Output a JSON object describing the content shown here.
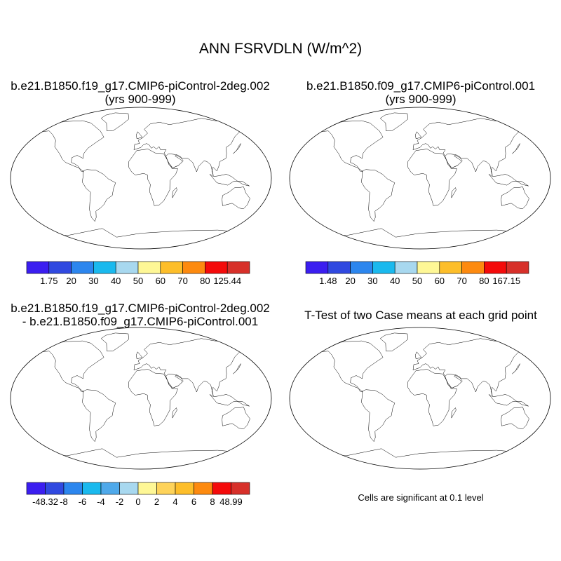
{
  "figure": {
    "title": "ANN FSRVDLN (W/m^2)"
  },
  "panels": [
    {
      "id": "case1",
      "title_line1": "b.e21.B1850.f19_g17.CMIP6-piControl-2deg.002",
      "title_line2": "(yrs 900-999)",
      "colorbar": {
        "colors": [
          "#3b1ef0",
          "#3049e0",
          "#2c86ee",
          "#1ab9ee",
          "#a8d8ef",
          "#fef796",
          "#fdbe2a",
          "#fd8a0f",
          "#f40b0b",
          "#d7302a"
        ],
        "labels": [
          "1.75",
          "20",
          "30",
          "40",
          "50",
          "60",
          "70",
          "80",
          "125.44"
        ]
      }
    },
    {
      "id": "case2",
      "title_line1": "b.e21.B1850.f09_g17.CMIP6-piControl.001",
      "title_line2": "(yrs 900-999)",
      "colorbar": {
        "colors": [
          "#3b1ef0",
          "#3049e0",
          "#2c86ee",
          "#1ab9ee",
          "#a8d8ef",
          "#fef796",
          "#fdbe2a",
          "#fd8a0f",
          "#f40b0b",
          "#d7302a"
        ],
        "labels": [
          "1.48",
          "20",
          "30",
          "40",
          "50",
          "60",
          "70",
          "80",
          "167.15"
        ]
      }
    },
    {
      "id": "difference",
      "title_line1": "b.e21.B1850.f19_g17.CMIP6-piControl-2deg.002",
      "title_line2": "- b.e21.B1850.f09_g17.CMIP6-piControl.001",
      "colorbar": {
        "colors": [
          "#3b1ef0",
          "#3049e0",
          "#2c86ee",
          "#1ab9ee",
          "#4fa9ea",
          "#a8d8ef",
          "#fef796",
          "#fed35a",
          "#fdbe2a",
          "#fd8a0f",
          "#f40b0b",
          "#d7302a"
        ],
        "labels": [
          "-48.32",
          "-8",
          "-6",
          "-4",
          "-2",
          "0",
          "2",
          "4",
          "6",
          "8",
          "48.99"
        ]
      }
    },
    {
      "id": "ttest",
      "title_line1": "T-Test of two Case means at each grid point",
      "note": "Cells are significant at 0.1 level",
      "fill_color": "#f40b0b"
    }
  ]
}
